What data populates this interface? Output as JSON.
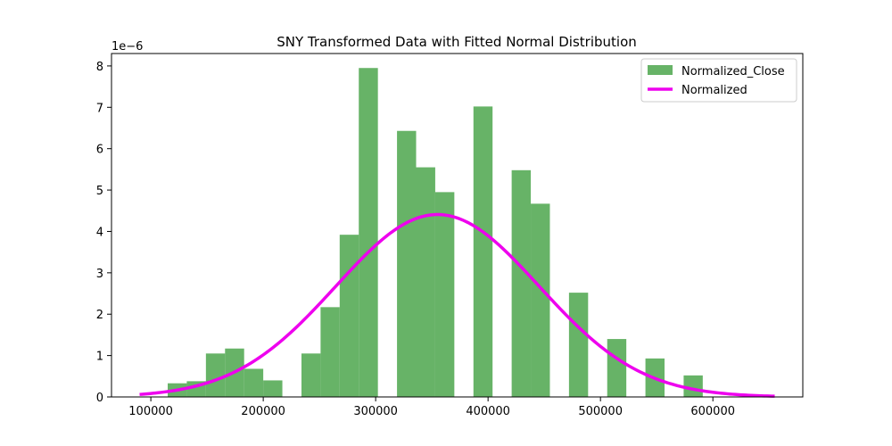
{
  "chart_data": {
    "type": "bar",
    "title": "SNY Transformed Data with Fitted Normal Distribution",
    "xlabel": "",
    "ylabel": "",
    "y_scale_note": "1e−6",
    "xlim": [
      65000,
      680000
    ],
    "ylim": [
      0,
      8.3
    ],
    "x_ticks": [
      100000,
      200000,
      300000,
      400000,
      500000,
      600000
    ],
    "x_tick_labels": [
      "100000",
      "200000",
      "300000",
      "400000",
      "500000",
      "600000"
    ],
    "y_ticks": [
      0,
      1,
      2,
      3,
      4,
      5,
      6,
      7,
      8
    ],
    "y_tick_labels": [
      "0",
      "1",
      "2",
      "3",
      "4",
      "5",
      "6",
      "7",
      "8"
    ],
    "grid": false,
    "legend_position": "top-right",
    "histogram": {
      "name": "Normalized_Close",
      "color": "#4ca64c",
      "bin_edges": [
        115000,
        132000,
        149000,
        166000,
        183000,
        200000,
        217000,
        234000,
        251000,
        268000,
        285000,
        302000,
        319000,
        336000,
        353000,
        370000,
        387000,
        404000,
        421000,
        438000,
        455000,
        472000,
        489000,
        506000,
        523000,
        540000,
        557000,
        574000,
        591000
      ],
      "values": [
        0.33,
        0.38,
        1.05,
        1.17,
        0.68,
        0.4,
        0,
        1.05,
        2.17,
        3.92,
        7.95,
        0,
        6.43,
        5.55,
        4.95,
        0,
        7.02,
        0,
        5.48,
        4.67,
        0,
        2.52,
        0,
        1.4,
        0,
        0.93,
        0,
        0.52
      ]
    },
    "fitted_curve": {
      "name": "Normalized",
      "color": "#ee00ee",
      "x_range": [
        90000,
        655000
      ],
      "mean": 355000,
      "std": 90500
    }
  }
}
